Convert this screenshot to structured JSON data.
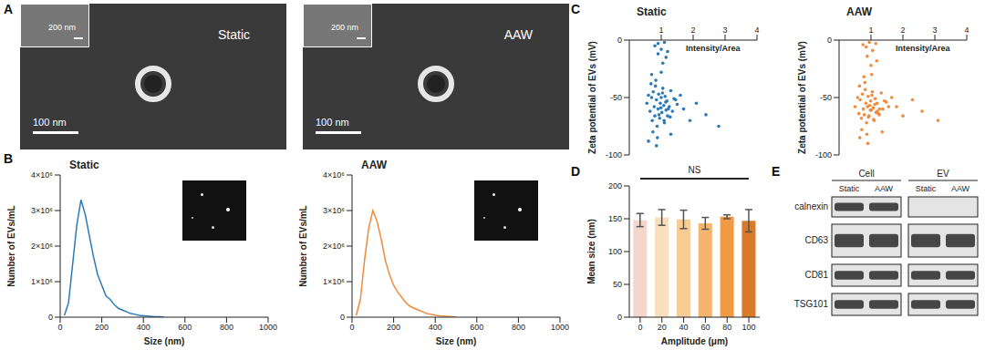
{
  "panel_labels": [
    "A",
    "B",
    "C",
    "D",
    "E"
  ],
  "images": [
    {
      "title": "Static",
      "scale_bar": "100 nm",
      "inset_scale_bar": "200 nm"
    },
    {
      "title": "AAW",
      "scale_bar": "100 nm",
      "inset_scale_bar": "200 nm"
    }
  ],
  "chart_data": [
    {
      "type": "line",
      "title": "Static",
      "x_label": "Size (nm)",
      "y_label": "Number of EVs/mL",
      "color": "#2a7ab8",
      "x": [
        20,
        40,
        60,
        80,
        100,
        120,
        140,
        160,
        180,
        200,
        220,
        240,
        260,
        280,
        300,
        320,
        340,
        360,
        380,
        400,
        420,
        440,
        460,
        480,
        500
      ],
      "values": [
        50000,
        400000,
        1500000,
        2600000,
        3300000,
        2900000,
        2300000,
        1700000,
        1200000,
        900000,
        600000,
        500000,
        350000,
        250000,
        200000,
        150000,
        100000,
        80000,
        50000,
        40000,
        30000,
        20000,
        10000,
        10000,
        0
      ],
      "xlim": [
        0,
        1000
      ],
      "xticks": [
        0,
        200,
        400,
        600,
        800,
        1000
      ],
      "ylim": [
        0,
        4000000
      ],
      "yticks": [
        0,
        {
          "value": 1000000,
          "label": "1×10⁶"
        },
        {
          "value": 2000000,
          "label": "2×10⁶"
        },
        {
          "value": 3000000,
          "label": "3×10⁶"
        },
        {
          "value": 4000000,
          "label": "4×10⁶"
        }
      ]
    },
    {
      "type": "line",
      "title": "AAW",
      "x_label": "Size (nm)",
      "y_label": "Number of EVs/mL",
      "color": "#f08a3c",
      "x": [
        20,
        40,
        60,
        80,
        100,
        120,
        140,
        160,
        180,
        200,
        220,
        240,
        260,
        280,
        300,
        320,
        340,
        360,
        380,
        400,
        420,
        440,
        460,
        480,
        500
      ],
      "values": [
        50000,
        500000,
        1600000,
        2500000,
        3000000,
        2700000,
        2200000,
        1600000,
        1200000,
        900000,
        700000,
        550000,
        400000,
        300000,
        250000,
        200000,
        150000,
        100000,
        80000,
        60000,
        40000,
        30000,
        20000,
        10000,
        0
      ],
      "xlim": [
        0,
        1000
      ],
      "xticks": [
        0,
        200,
        400,
        600,
        800,
        1000
      ],
      "ylim": [
        0,
        4000000
      ],
      "yticks": [
        0,
        {
          "value": 1000000,
          "label": "1×10⁶"
        },
        {
          "value": 2000000,
          "label": "2×10⁶"
        },
        {
          "value": 3000000,
          "label": "3×10⁶"
        },
        {
          "value": 4000000,
          "label": "4×10⁶"
        }
      ]
    },
    {
      "type": "scatter",
      "title": "Static",
      "x_label": "Intensity/Area",
      "y_label": "Zeta potential of EVs (mV)",
      "color": "#2a7ab8",
      "x": [
        0.55,
        0.6,
        0.65,
        0.7,
        0.72,
        0.75,
        0.78,
        0.8,
        0.82,
        0.85,
        0.87,
        0.9,
        0.92,
        0.95,
        0.97,
        1.0,
        1.02,
        1.05,
        1.08,
        1.1,
        1.12,
        1.15,
        1.18,
        1.2,
        1.25,
        1.3,
        1.35,
        1.4,
        1.5,
        1.6,
        0.68,
        0.74,
        0.83,
        0.88,
        0.93,
        0.99,
        1.04,
        1.09,
        1.14,
        1.22,
        1.28,
        1.45,
        0.8,
        0.9,
        1.0,
        1.1,
        1.2,
        1.7,
        1.9,
        2.1,
        2.4,
        2.8,
        0.6,
        0.7,
        0.85,
        1.0,
        1.3,
        0.9,
        1.05,
        1.15
      ],
      "values": [
        -55,
        -48,
        -62,
        -50,
        -70,
        -45,
        -58,
        -66,
        -40,
        -52,
        -75,
        -60,
        -47,
        -68,
        -55,
        -50,
        -63,
        -42,
        -57,
        -72,
        -49,
        -61,
        -53,
        -66,
        -58,
        -44,
        -62,
        -51,
        -56,
        -48,
        -38,
        -80,
        -35,
        -85,
        -65,
        -59,
        -46,
        -70,
        -54,
        -60,
        -67,
        -52,
        -5,
        -3,
        -8,
        -2,
        -10,
        -60,
        -70,
        -55,
        -65,
        -75,
        -88,
        -30,
        -92,
        -28,
        -82,
        -12,
        -20,
        -15
      ],
      "xlim": [
        0,
        4
      ],
      "xticks": [
        1,
        2,
        3,
        4
      ],
      "ylim": [
        -100,
        0
      ],
      "yticks": [
        -100,
        -50,
        0
      ]
    },
    {
      "type": "scatter",
      "title": "AAW",
      "x_label": "Intensity/Area",
      "y_label": "Zeta potential of EVs (mV)",
      "color": "#f08a3c",
      "x": [
        0.5,
        0.58,
        0.62,
        0.66,
        0.7,
        0.73,
        0.76,
        0.79,
        0.82,
        0.84,
        0.86,
        0.89,
        0.91,
        0.94,
        0.96,
        0.99,
        1.01,
        1.04,
        1.07,
        1.1,
        1.13,
        1.16,
        1.19,
        1.23,
        1.27,
        1.32,
        1.37,
        1.42,
        1.55,
        1.65,
        0.64,
        0.71,
        0.81,
        0.87,
        0.92,
        0.98,
        1.03,
        1.08,
        1.12,
        1.2,
        1.26,
        1.48,
        0.75,
        0.85,
        0.95,
        1.05,
        1.15,
        1.8,
        2.0,
        2.3,
        2.6,
        3.1,
        0.65,
        0.78,
        0.9,
        1.02,
        1.35,
        0.88,
        1.0,
        1.18
      ],
      "values": [
        -58,
        -50,
        -64,
        -52,
        -68,
        -47,
        -60,
        -65,
        -43,
        -55,
        -72,
        -58,
        -49,
        -66,
        -57,
        -53,
        -61,
        -45,
        -59,
        -70,
        -51,
        -63,
        -55,
        -64,
        -60,
        -46,
        -60,
        -53,
        -58,
        -50,
        -40,
        -78,
        -37,
        -82,
        -67,
        -61,
        -48,
        -69,
        -56,
        -62,
        -65,
        -54,
        -4,
        -6,
        -2,
        -9,
        -3,
        -58,
        -66,
        -52,
        -62,
        -70,
        -85,
        -32,
        -90,
        -30,
        -80,
        -14,
        -22,
        -18
      ],
      "xlim": [
        0,
        4
      ],
      "xticks": [
        1,
        2,
        3,
        4
      ],
      "ylim": [
        -100,
        0
      ],
      "yticks": [
        -100,
        -50,
        0
      ]
    },
    {
      "type": "bar",
      "x_label": "Amplitude (μm)",
      "y_label": "Mean size (nm)",
      "annotation": "NS",
      "categories": [
        "0",
        "20",
        "40",
        "60",
        "80",
        "100"
      ],
      "values": [
        148,
        152,
        149,
        143,
        153,
        147
      ],
      "errors": [
        10,
        12,
        14,
        9,
        3,
        17
      ],
      "colors": [
        "#f3d6cc",
        "#f8e0bf",
        "#f7cc95",
        "#f5b56e",
        "#f19a46",
        "#d9792a"
      ],
      "ylim": [
        0,
        200
      ],
      "yticks": [
        0,
        50,
        100,
        150,
        200
      ]
    }
  ],
  "blot": {
    "groups": [
      {
        "label": "Cell",
        "lanes": [
          "Static",
          "AAW"
        ]
      },
      {
        "label": "EV",
        "lanes": [
          "Static",
          "AAW"
        ]
      }
    ],
    "rows": [
      {
        "label": "calnexin",
        "bands": [
          true,
          true,
          false,
          false
        ]
      },
      {
        "label": "CD63",
        "bands": [
          true,
          true,
          true,
          true
        ]
      },
      {
        "label": "CD81",
        "bands": [
          true,
          true,
          true,
          true
        ]
      },
      {
        "label": "TSG101",
        "bands": [
          true,
          true,
          true,
          true
        ]
      }
    ]
  }
}
